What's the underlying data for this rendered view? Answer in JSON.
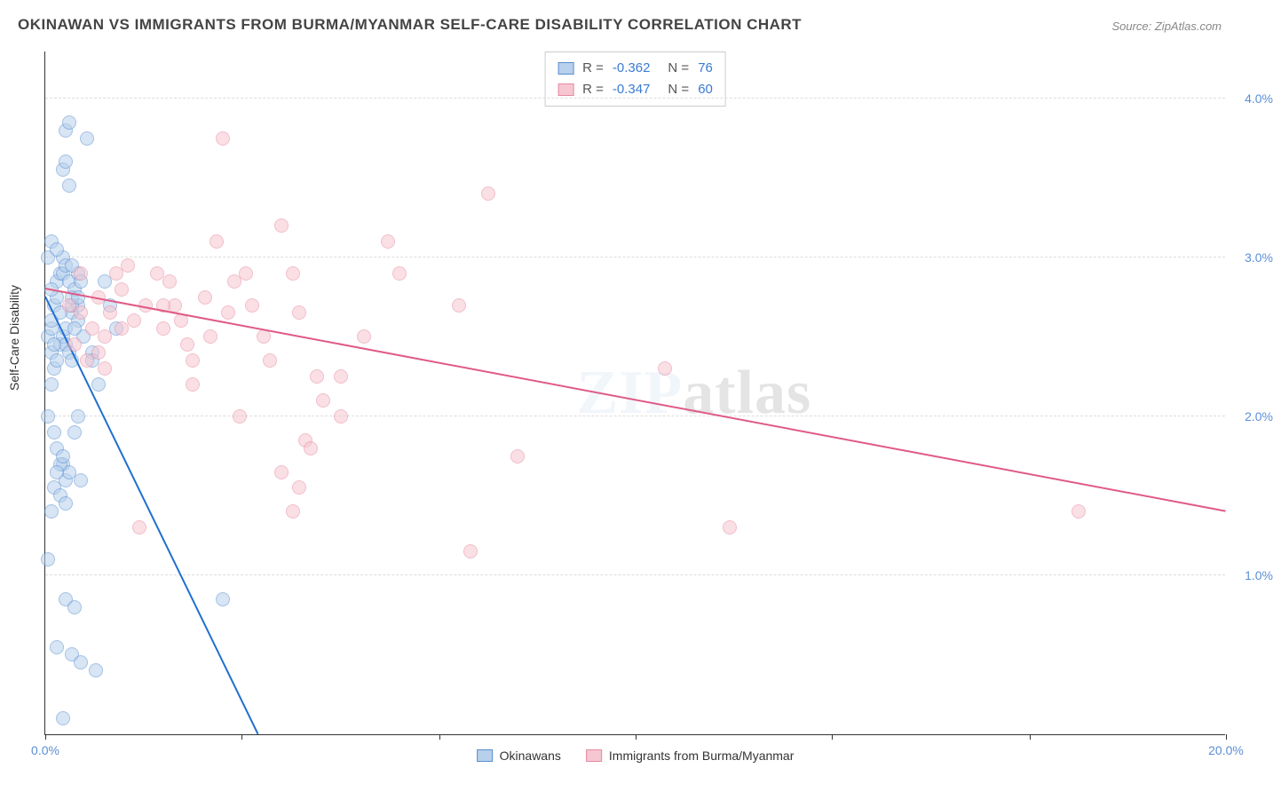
{
  "title": "OKINAWAN VS IMMIGRANTS FROM BURMA/MYANMAR SELF-CARE DISABILITY CORRELATION CHART",
  "source": "Source: ZipAtlas.com",
  "ylabel": "Self-Care Disability",
  "watermark": {
    "part1": "ZIP",
    "part2": "atlas"
  },
  "chart": {
    "type": "scatter",
    "xlim": [
      0,
      20
    ],
    "ylim": [
      0,
      4.3
    ],
    "background_color": "#ffffff",
    "grid_color": "#dddddd",
    "axis_color": "#333333",
    "tick_label_color": "#5b8fd6",
    "marker_radius": 8,
    "marker_opacity": 0.55,
    "x_ticks": [
      0,
      3.33,
      6.67,
      10,
      13.33,
      16.67,
      20
    ],
    "x_tick_labels": {
      "0": "0.0%",
      "20": "20.0%"
    },
    "y_gridlines": [
      1.0,
      2.0,
      3.0,
      4.0
    ],
    "y_tick_labels": {
      "1.0": "1.0%",
      "2.0": "2.0%",
      "3.0": "3.0%",
      "4.0": "4.0%"
    },
    "series": {
      "okinawans": {
        "label": "Okinawans",
        "fill": "#b7d0ec",
        "stroke": "#5a8fd0",
        "trend_color": "#1f6fd0",
        "R": "-0.362",
        "N": "76",
        "trend": {
          "x1": 0,
          "y1": 2.75,
          "x2": 3.6,
          "y2": 0
        },
        "points": [
          [
            0.05,
            2.5
          ],
          [
            0.1,
            2.55
          ],
          [
            0.1,
            2.6
          ],
          [
            0.15,
            2.7
          ],
          [
            0.2,
            2.75
          ],
          [
            0.2,
            2.85
          ],
          [
            0.25,
            2.9
          ],
          [
            0.1,
            2.4
          ],
          [
            0.25,
            2.45
          ],
          [
            0.3,
            2.5
          ],
          [
            0.35,
            2.55
          ],
          [
            0.15,
            2.3
          ],
          [
            0.2,
            2.35
          ],
          [
            0.1,
            2.2
          ],
          [
            0.05,
            2.0
          ],
          [
            0.15,
            1.9
          ],
          [
            0.2,
            1.8
          ],
          [
            0.3,
            1.7
          ],
          [
            0.15,
            1.55
          ],
          [
            0.25,
            1.5
          ],
          [
            0.35,
            1.45
          ],
          [
            0.35,
            1.6
          ],
          [
            0.4,
            1.65
          ],
          [
            0.1,
            1.4
          ],
          [
            0.05,
            1.1
          ],
          [
            0.35,
            0.85
          ],
          [
            0.5,
            0.8
          ],
          [
            0.2,
            0.55
          ],
          [
            0.45,
            0.5
          ],
          [
            0.6,
            0.45
          ],
          [
            0.85,
            0.4
          ],
          [
            0.3,
            0.1
          ],
          [
            0.3,
            2.9
          ],
          [
            0.4,
            2.85
          ],
          [
            0.5,
            2.8
          ],
          [
            0.55,
            2.9
          ],
          [
            0.6,
            2.85
          ],
          [
            0.3,
            3.0
          ],
          [
            0.05,
            3.0
          ],
          [
            0.4,
            3.45
          ],
          [
            0.3,
            3.55
          ],
          [
            0.35,
            3.6
          ],
          [
            0.35,
            3.8
          ],
          [
            0.4,
            3.85
          ],
          [
            0.7,
            3.75
          ],
          [
            1.0,
            2.85
          ],
          [
            1.1,
            2.7
          ],
          [
            1.2,
            2.55
          ],
          [
            0.8,
            2.4
          ],
          [
            0.8,
            2.35
          ],
          [
            0.9,
            2.2
          ],
          [
            0.55,
            2.0
          ],
          [
            0.5,
            1.9
          ],
          [
            0.6,
            1.6
          ],
          [
            0.1,
            2.8
          ],
          [
            0.45,
            2.65
          ],
          [
            0.55,
            2.6
          ],
          [
            0.65,
            2.5
          ],
          [
            0.1,
            3.1
          ],
          [
            0.2,
            3.05
          ],
          [
            0.55,
            2.7
          ],
          [
            0.35,
            2.45
          ],
          [
            0.4,
            2.4
          ],
          [
            0.45,
            2.35
          ],
          [
            0.25,
            1.7
          ],
          [
            0.2,
            1.65
          ],
          [
            0.3,
            1.75
          ],
          [
            0.5,
            2.55
          ],
          [
            0.45,
            2.7
          ],
          [
            0.35,
            2.95
          ],
          [
            0.45,
            2.75
          ],
          [
            3.0,
            0.85
          ],
          [
            0.25,
            2.65
          ],
          [
            0.15,
            2.45
          ],
          [
            0.45,
            2.95
          ],
          [
            0.55,
            2.75
          ]
        ]
      },
      "immigrants": {
        "label": "Immigrants from Burma/Myanmar",
        "fill": "#f6c6d1",
        "stroke": "#e68aa2",
        "trend_color": "#e05a85",
        "R": "-0.347",
        "N": "60",
        "trend": {
          "x1": 0,
          "y1": 2.8,
          "x2": 20,
          "y2": 1.4
        },
        "points": [
          [
            0.4,
            2.7
          ],
          [
            0.6,
            2.65
          ],
          [
            0.9,
            2.75
          ],
          [
            1.0,
            2.5
          ],
          [
            1.2,
            2.9
          ],
          [
            1.4,
            2.95
          ],
          [
            1.5,
            2.6
          ],
          [
            1.7,
            2.7
          ],
          [
            1.9,
            2.9
          ],
          [
            2.0,
            2.55
          ],
          [
            2.1,
            2.85
          ],
          [
            2.2,
            2.7
          ],
          [
            2.3,
            2.6
          ],
          [
            2.5,
            2.2
          ],
          [
            2.5,
            2.35
          ],
          [
            2.9,
            3.1
          ],
          [
            3.0,
            3.75
          ],
          [
            3.1,
            2.65
          ],
          [
            3.2,
            2.85
          ],
          [
            3.4,
            2.9
          ],
          [
            3.5,
            2.7
          ],
          [
            3.7,
            2.5
          ],
          [
            4.0,
            3.2
          ],
          [
            4.3,
            2.65
          ],
          [
            4.4,
            1.85
          ],
          [
            4.5,
            1.8
          ],
          [
            4.6,
            2.25
          ],
          [
            4.7,
            2.1
          ],
          [
            1.6,
            1.3
          ],
          [
            1.0,
            2.3
          ],
          [
            0.5,
            2.45
          ],
          [
            0.7,
            2.35
          ],
          [
            5.8,
            3.1
          ],
          [
            6.0,
            2.9
          ],
          [
            7.5,
            3.4
          ],
          [
            8.0,
            1.75
          ],
          [
            7.2,
            1.15
          ],
          [
            4.2,
            1.4
          ],
          [
            4.3,
            1.55
          ],
          [
            4.0,
            1.65
          ],
          [
            7.0,
            2.7
          ],
          [
            10.5,
            2.3
          ],
          [
            11.6,
            1.3
          ],
          [
            17.5,
            1.4
          ],
          [
            1.3,
            2.8
          ],
          [
            0.8,
            2.55
          ],
          [
            0.9,
            2.4
          ],
          [
            2.0,
            2.7
          ],
          [
            2.7,
            2.75
          ],
          [
            2.8,
            2.5
          ],
          [
            3.3,
            2.0
          ],
          [
            0.6,
            2.9
          ],
          [
            5.0,
            2.25
          ],
          [
            5.0,
            2.0
          ],
          [
            4.2,
            2.9
          ],
          [
            3.8,
            2.35
          ],
          [
            1.1,
            2.65
          ],
          [
            1.3,
            2.55
          ],
          [
            5.4,
            2.5
          ],
          [
            2.4,
            2.45
          ]
        ]
      }
    }
  },
  "legend_top": {
    "R_label": "R =",
    "N_label": "N ="
  }
}
